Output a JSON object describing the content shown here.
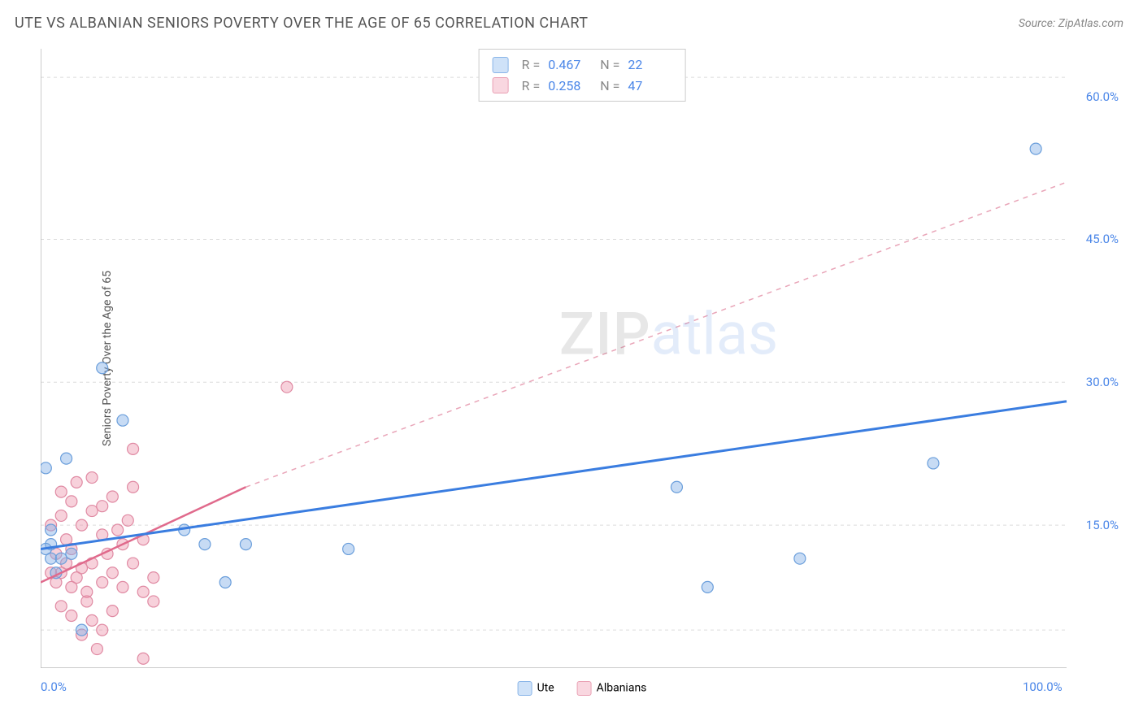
{
  "header": {
    "title": "UTE VS ALBANIAN SENIORS POVERTY OVER THE AGE OF 65 CORRELATION CHART",
    "source": "Source: ZipAtlas.com"
  },
  "watermark": {
    "part1": "ZIP",
    "part2": "atlas"
  },
  "chart": {
    "type": "scatter",
    "ylabel": "Seniors Poverty Over the Age of 65",
    "xlim": [
      0,
      100
    ],
    "ylim": [
      0,
      65
    ],
    "xtick_labels": [
      {
        "pos": 0,
        "text": "0.0%",
        "align": "left"
      },
      {
        "pos": 100,
        "text": "100.0%",
        "align": "right"
      }
    ],
    "xtick_minor": [
      20,
      40,
      47,
      60,
      80
    ],
    "ytick_labels": [
      {
        "pos": 15,
        "text": "15.0%"
      },
      {
        "pos": 30,
        "text": "30.0%"
      },
      {
        "pos": 45,
        "text": "45.0%"
      },
      {
        "pos": 60,
        "text": "60.0%"
      }
    ],
    "grid_positions_y": [
      4,
      15,
      30,
      45,
      62
    ],
    "background_color": "#ffffff",
    "grid_color": "#dcdcdc",
    "axis_color": "#bbbbbb",
    "series": {
      "ute": {
        "label": "Ute",
        "swatch_fill": "#cfe2f8",
        "swatch_stroke": "#89b5e8",
        "marker_fill": "rgba(130,175,230,0.45)",
        "marker_stroke": "#6a9edb",
        "marker_r": 7,
        "trend_solid": {
          "x1": 0,
          "y1": 12.5,
          "x2": 100,
          "y2": 28,
          "color": "#3a7de0",
          "width": 3
        },
        "trend_dash": null,
        "stats": {
          "R": "0.467",
          "N": "22"
        },
        "points": [
          {
            "x": 0.5,
            "y": 21
          },
          {
            "x": 2.5,
            "y": 22
          },
          {
            "x": 1,
            "y": 13
          },
          {
            "x": 1,
            "y": 11.5
          },
          {
            "x": 2,
            "y": 11.5
          },
          {
            "x": 3,
            "y": 12
          },
          {
            "x": 0.5,
            "y": 12.5
          },
          {
            "x": 1.5,
            "y": 10
          },
          {
            "x": 8,
            "y": 26
          },
          {
            "x": 6,
            "y": 31.5
          },
          {
            "x": 4,
            "y": 4
          },
          {
            "x": 14,
            "y": 14.5
          },
          {
            "x": 16,
            "y": 13
          },
          {
            "x": 20,
            "y": 13
          },
          {
            "x": 30,
            "y": 12.5
          },
          {
            "x": 18,
            "y": 9
          },
          {
            "x": 65,
            "y": 8.5
          },
          {
            "x": 74,
            "y": 11.5
          },
          {
            "x": 62,
            "y": 19
          },
          {
            "x": 87,
            "y": 21.5
          },
          {
            "x": 97,
            "y": 54.5
          },
          {
            "x": 1,
            "y": 14.5
          }
        ]
      },
      "albanians": {
        "label": "Albanians",
        "swatch_fill": "#f9d7e0",
        "swatch_stroke": "#eaa0b4",
        "marker_fill": "rgba(235,140,165,0.40)",
        "marker_stroke": "#e08aa3",
        "marker_r": 7,
        "trend_solid": {
          "x1": 0,
          "y1": 9,
          "x2": 20,
          "y2": 19,
          "color": "#e06a8c",
          "width": 2.5
        },
        "trend_dash": {
          "x1": 20,
          "y1": 19,
          "x2": 100,
          "y2": 51,
          "color": "#e9a5b8",
          "width": 1.5
        },
        "stats": {
          "R": "0.258",
          "N": "47"
        },
        "points": [
          {
            "x": 1,
            "y": 10
          },
          {
            "x": 1.5,
            "y": 9
          },
          {
            "x": 2,
            "y": 10
          },
          {
            "x": 2.5,
            "y": 11
          },
          {
            "x": 3,
            "y": 8.5
          },
          {
            "x": 3.5,
            "y": 9.5
          },
          {
            "x": 4,
            "y": 10.5
          },
          {
            "x": 4.5,
            "y": 8
          },
          {
            "x": 5,
            "y": 11
          },
          {
            "x": 1,
            "y": 15
          },
          {
            "x": 2,
            "y": 16
          },
          {
            "x": 3,
            "y": 17.5
          },
          {
            "x": 4,
            "y": 15
          },
          {
            "x": 5,
            "y": 16.5
          },
          {
            "x": 6,
            "y": 14
          },
          {
            "x": 6.5,
            "y": 12
          },
          {
            "x": 7,
            "y": 10
          },
          {
            "x": 7.5,
            "y": 14.5
          },
          {
            "x": 8,
            "y": 13
          },
          {
            "x": 8.5,
            "y": 15.5
          },
          {
            "x": 9,
            "y": 19
          },
          {
            "x": 2,
            "y": 18.5
          },
          {
            "x": 3.5,
            "y": 19.5
          },
          {
            "x": 5,
            "y": 20
          },
          {
            "x": 1.5,
            "y": 12
          },
          {
            "x": 2.5,
            "y": 13.5
          },
          {
            "x": 3,
            "y": 12.5
          },
          {
            "x": 6,
            "y": 17
          },
          {
            "x": 7,
            "y": 18
          },
          {
            "x": 9,
            "y": 23
          },
          {
            "x": 10,
            "y": 8
          },
          {
            "x": 11,
            "y": 7
          },
          {
            "x": 5,
            "y": 5
          },
          {
            "x": 6,
            "y": 4
          },
          {
            "x": 7,
            "y": 6
          },
          {
            "x": 4,
            "y": 3.5
          },
          {
            "x": 3,
            "y": 5.5
          },
          {
            "x": 2,
            "y": 6.5
          },
          {
            "x": 4.5,
            "y": 7
          },
          {
            "x": 10,
            "y": 1
          },
          {
            "x": 5.5,
            "y": 2
          },
          {
            "x": 24,
            "y": 29.5
          },
          {
            "x": 8,
            "y": 8.5
          },
          {
            "x": 9,
            "y": 11
          },
          {
            "x": 10,
            "y": 13.5
          },
          {
            "x": 11,
            "y": 9.5
          },
          {
            "x": 6,
            "y": 9
          }
        ]
      }
    }
  }
}
